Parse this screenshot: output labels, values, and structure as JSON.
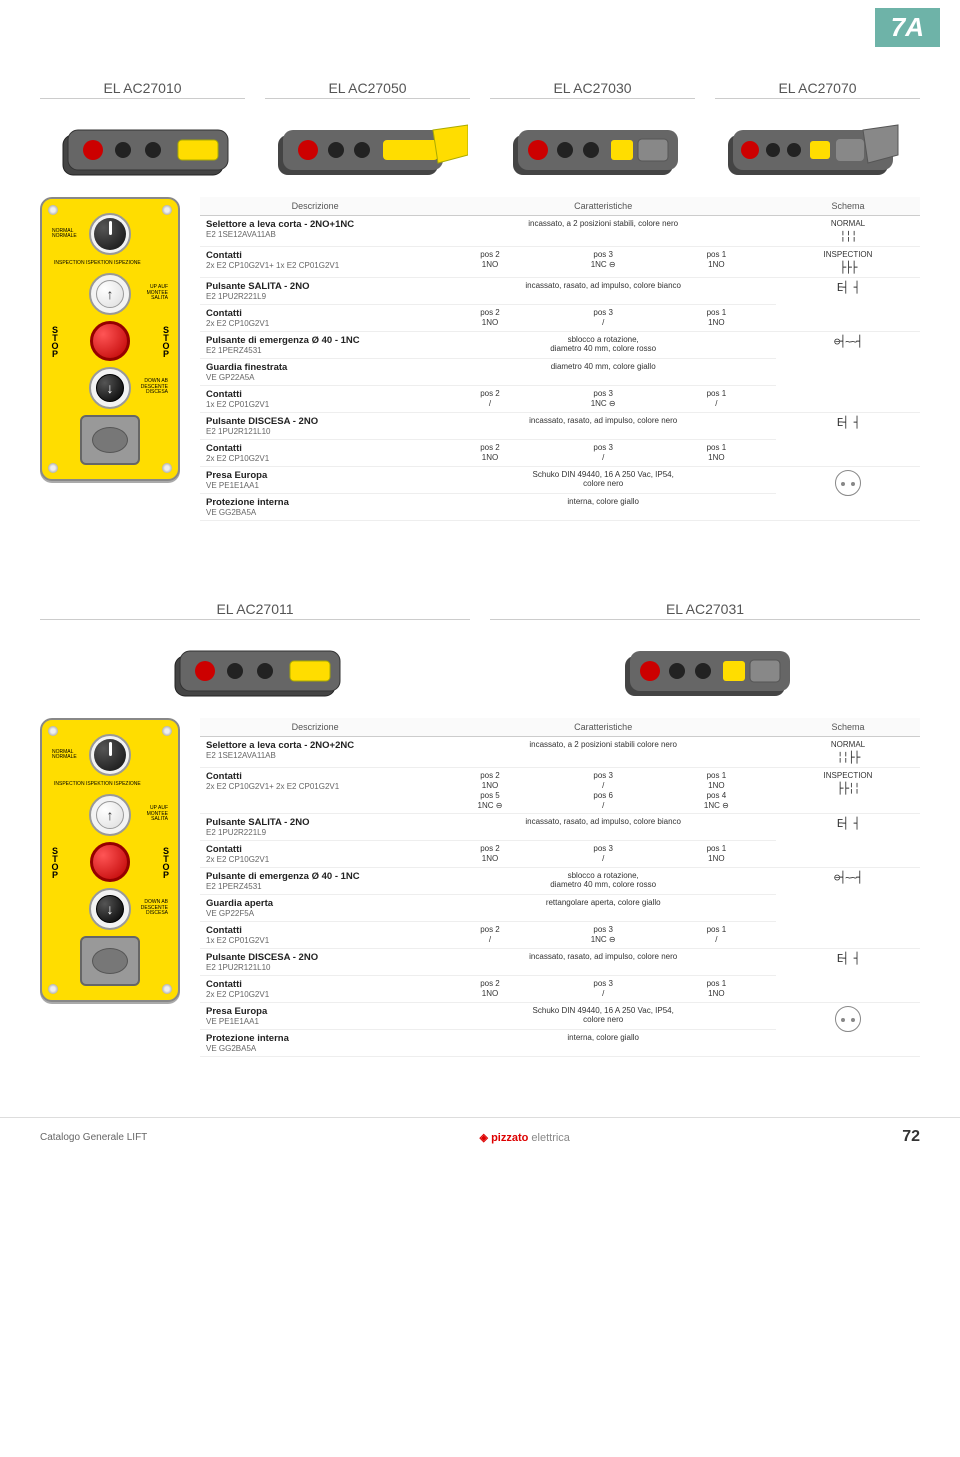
{
  "page_tab": "7A",
  "footer": {
    "left": "Catalogo Generale LIFT",
    "brand": "pizzato",
    "brand_sub": "elettrica",
    "page": "72"
  },
  "section1": {
    "models": [
      "EL AC27010",
      "EL AC27050",
      "EL AC27030",
      "EL AC27070"
    ],
    "headers": {
      "desc": "Descrizione",
      "char": "Caratteristiche",
      "schema": "Schema"
    },
    "panel_labels": {
      "normal": "NORMAL\nNORMALE",
      "inspection": "INSPECTION\nISPEKTION\nISPEZIONE",
      "up": "UP\nAUF\nMONTEE\nSALITA",
      "down": "DOWN\nAB\nDESCENTE\nDISCESA",
      "stop": "STOP"
    },
    "rows": [
      {
        "title": "Selettore a leva corta - 2NO+1NC",
        "sub": "E2 1SE12AVA11AB",
        "char_full": "incassato, a 2 posizioni stabili, colore nero",
        "schema_label": "NORMAL",
        "schema_sym": "╎╎╎"
      },
      {
        "title": "Contatti",
        "sub": "2x  E2 CP10G2V1+ 1x  E2 CP01G2V1",
        "grid": [
          "pos 2",
          "pos 3",
          "pos 1",
          "1NO",
          "1NC ⊖",
          "1NO"
        ],
        "schema_label": "INSPECTION",
        "schema_sym": "├├├"
      },
      {
        "title": "Pulsante SALITA - 2NO",
        "sub": "E2 1PU2R221L9",
        "char_full": "incassato, rasato, ad impulso, colore bianco",
        "schema_sym": "E┤ ┤",
        "rowspan_schema": 2
      },
      {
        "title": "Contatti",
        "sub": "2x  E2 CP10G2V1",
        "grid": [
          "pos 2",
          "pos 3",
          "pos 1",
          "1NO",
          "/",
          "1NO"
        ]
      },
      {
        "title": "Pulsante di emergenza Ø 40 - 1NC",
        "sub": "E2 1PERZ4531",
        "char_full": "sblocco a rotazione,\ndiametro 40 mm, colore rosso",
        "rowspan_schema": 3,
        "schema_sym": "⊖┤~~┤"
      },
      {
        "title": "Guardia finestrata",
        "sub": "VE GP22A5A",
        "char_full": "diametro 40 mm, colore giallo"
      },
      {
        "title": "Contatti",
        "sub": "1x  E2 CP01G2V1",
        "grid": [
          "pos 2",
          "pos 3",
          "pos 1",
          "/",
          "1NC ⊖",
          "/"
        ]
      },
      {
        "title": "Pulsante DISCESA - 2NO",
        "sub": "E2 1PU2R121L10",
        "char_full": "incassato, rasato, ad impulso, colore nero",
        "rowspan_schema": 2,
        "schema_sym": "E┤ ┤"
      },
      {
        "title": "Contatti",
        "sub": "2x  E2 CP10G2V1",
        "grid": [
          "pos 2",
          "pos 3",
          "pos 1",
          "1NO",
          "/",
          "1NO"
        ]
      },
      {
        "title": "Presa Europa",
        "sub": "VE PE1E1AA1",
        "char_full": "Schuko DIN 49440, 16 A 250 Vac, IP54,\ncolore nero",
        "schema_icon": "schuko",
        "rowspan_schema": 2
      },
      {
        "title": "Protezione interna",
        "sub": "VE GG2BA5A",
        "char_full": "interna, colore giallo"
      }
    ]
  },
  "section2": {
    "models": [
      "EL AC27011",
      "EL AC27031"
    ],
    "headers": {
      "desc": "Descrizione",
      "char": "Caratteristiche",
      "schema": "Schema"
    },
    "rows": [
      {
        "title": "Selettore a leva corta - 2NO+2NC",
        "sub": "E2 1SE12AVA11AB",
        "char_full": "incassato, a 2 posizioni stabili colore nero",
        "schema_label": "NORMAL",
        "schema_sym": "╎╎├├"
      },
      {
        "title": "Contatti",
        "sub": "2x  E2 CP10G2V1+ 2x  E2 CP01G2V1",
        "grid": [
          "pos 2",
          "pos 3",
          "pos 1",
          "1NO",
          "/",
          "1NO",
          "pos 5",
          "pos 6",
          "pos 4",
          "1NC ⊖",
          "/",
          "1NC ⊖"
        ],
        "schema_label": "INSPECTION",
        "schema_sym": "├├╎╎"
      },
      {
        "title": "Pulsante SALITA - 2NO",
        "sub": "E2 1PU2R221L9",
        "char_full": "incassato, rasato, ad impulso, colore bianco",
        "rowspan_schema": 2,
        "schema_sym": "E┤ ┤"
      },
      {
        "title": "Contatti",
        "sub": "2x  E2 CP10G2V1",
        "grid": [
          "pos 2",
          "pos 3",
          "pos 1",
          "1NO",
          "/",
          "1NO"
        ]
      },
      {
        "title": "Pulsante di emergenza Ø 40 - 1NC",
        "sub": "E2 1PERZ4531",
        "char_full": "sblocco a rotazione,\ndiametro 40 mm, colore rosso",
        "rowspan_schema": 3,
        "schema_sym": "⊖┤~~┤"
      },
      {
        "title": "Guardia aperta",
        "sub": "VE GP22F5A",
        "char_full": "rettangolare aperta, colore giallo"
      },
      {
        "title": "Contatti",
        "sub": "1x  E2 CP01G2V1",
        "grid": [
          "pos 2",
          "pos 3",
          "pos 1",
          "/",
          "1NC ⊖",
          "/"
        ]
      },
      {
        "title": "Pulsante DISCESA - 2NO",
        "sub": "E2 1PU2R121L10",
        "char_full": "incassato, rasato, ad impulso, colore nero",
        "rowspan_schema": 2,
        "schema_sym": "E┤ ┤"
      },
      {
        "title": "Contatti",
        "sub": "2x  E2 CP10G2V1",
        "grid": [
          "pos 2",
          "pos 3",
          "pos 1",
          "1NO",
          "/",
          "1NO"
        ]
      },
      {
        "title": "Presa Europa",
        "sub": "VE PE1E1AA1",
        "char_full": "Schuko DIN 49440, 16 A 250 Vac, IP54,\ncolore nero",
        "schema_icon": "schuko",
        "rowspan_schema": 2
      },
      {
        "title": "Protezione interna",
        "sub": "VE GG2BA5A",
        "char_full": "interna, colore giallo"
      }
    ]
  }
}
